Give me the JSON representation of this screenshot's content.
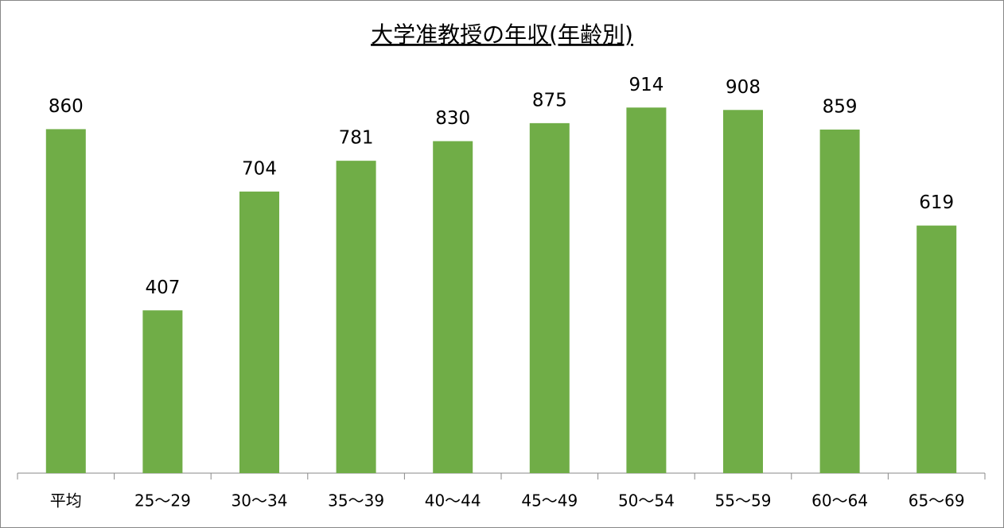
{
  "chart_data": {
    "type": "bar",
    "title": "大学准教授の年収(年齢別)",
    "categories": [
      "平均",
      "25〜29",
      "30〜34",
      "35〜39",
      "40〜44",
      "45〜49",
      "50〜54",
      "55〜59",
      "60〜64",
      "65〜69"
    ],
    "values": [
      860,
      407,
      704,
      781,
      830,
      875,
      914,
      908,
      859,
      619
    ],
    "color": "#70ad47",
    "ylim": [
      0,
      1000
    ]
  }
}
